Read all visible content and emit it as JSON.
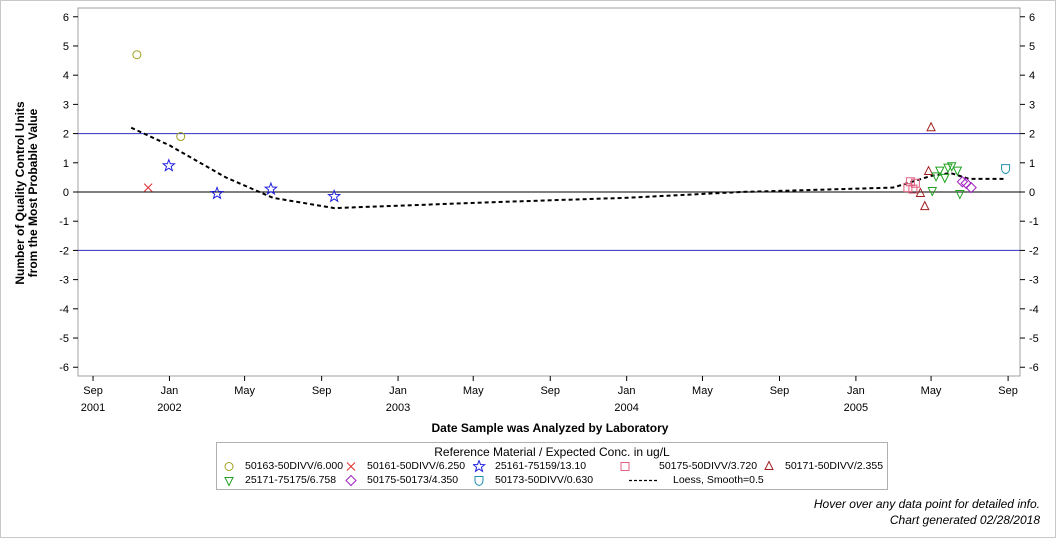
{
  "chart_data": {
    "type": "scatter",
    "title": "",
    "xlabel": "Date Sample was Analyzed by Laboratory",
    "ylabel_lines": [
      "Number of Quality Control Units",
      "from the Most Probable Value"
    ],
    "ylim": [
      -6.3,
      6.3
    ],
    "xlim": [
      "2001-08-08",
      "2005-09-20"
    ],
    "y_ticks": [
      -6,
      -5,
      -4,
      -3,
      -2,
      -1,
      0,
      1,
      2,
      3,
      4,
      5,
      6
    ],
    "x_ticks": [
      {
        "date": "2001-09-01",
        "label": "Sep",
        "year": "2001"
      },
      {
        "date": "2002-01-01",
        "label": "Jan",
        "year": "2002"
      },
      {
        "date": "2002-05-01",
        "label": "May",
        "year": ""
      },
      {
        "date": "2002-09-01",
        "label": "Sep",
        "year": ""
      },
      {
        "date": "2003-01-01",
        "label": "Jan",
        "year": "2003"
      },
      {
        "date": "2003-05-01",
        "label": "May",
        "year": ""
      },
      {
        "date": "2003-09-01",
        "label": "Sep",
        "year": ""
      },
      {
        "date": "2004-01-01",
        "label": "Jan",
        "year": "2004"
      },
      {
        "date": "2004-05-01",
        "label": "May",
        "year": ""
      },
      {
        "date": "2004-09-01",
        "label": "Sep",
        "year": ""
      },
      {
        "date": "2005-01-01",
        "label": "Jan",
        "year": "2005"
      },
      {
        "date": "2005-05-01",
        "label": "May",
        "year": ""
      },
      {
        "date": "2005-09-01",
        "label": "Sep",
        "year": ""
      }
    ],
    "reference_lines": [
      {
        "y": 2,
        "color": "#3030c0"
      },
      {
        "y": 0,
        "color": "#000000"
      },
      {
        "y": -2,
        "color": "#3030c0"
      }
    ],
    "legend_title": "Reference Material / Expected Conc. in ug/L",
    "legend_position": "bottom",
    "grid": false,
    "series": [
      {
        "name": "50163-50DIVV/6.000",
        "marker": "circle",
        "color": "#a0a020",
        "points": [
          [
            "2001-11-10",
            4.7
          ],
          [
            "2002-01-19",
            1.9
          ]
        ]
      },
      {
        "name": "50161-50DIVV/6.250",
        "marker": "x",
        "color": "#e03030",
        "points": [
          [
            "2001-11-28",
            0.15
          ]
        ]
      },
      {
        "name": "25161-75159/13.10",
        "marker": "star",
        "color": "#2020e0",
        "points": [
          [
            "2001-12-31",
            0.9
          ],
          [
            "2002-03-18",
            -0.05
          ],
          [
            "2002-06-12",
            0.1
          ],
          [
            "2002-09-21",
            -0.15
          ]
        ]
      },
      {
        "name": "50175-50DIVV/3.720",
        "marker": "square",
        "color": "#e06080",
        "points": [
          [
            "2005-03-25",
            0.15
          ],
          [
            "2005-03-29",
            0.35
          ],
          [
            "2005-04-02",
            0.1
          ],
          [
            "2005-04-06",
            0.3
          ]
        ]
      },
      {
        "name": "50171-50DIVV/2.355",
        "marker": "triangle",
        "color": "#a02020",
        "points": [
          [
            "2005-04-14",
            -0.05
          ],
          [
            "2005-04-21",
            -0.5
          ],
          [
            "2005-04-27",
            0.7
          ],
          [
            "2005-05-01",
            2.2
          ]
        ]
      },
      {
        "name": "25171-75175/6.758",
        "marker": "triangle-down",
        "color": "#20a020",
        "points": [
          [
            "2005-05-03",
            0.05
          ],
          [
            "2005-05-09",
            0.55
          ],
          [
            "2005-05-15",
            0.75
          ],
          [
            "2005-05-23",
            0.5
          ],
          [
            "2005-05-28",
            0.85
          ],
          [
            "2005-06-03",
            0.9
          ],
          [
            "2005-06-12",
            0.75
          ],
          [
            "2005-06-16",
            -0.05
          ]
        ]
      },
      {
        "name": "50175-50173/4.350",
        "marker": "diamond",
        "color": "#a020c0",
        "points": [
          [
            "2005-06-20",
            0.35
          ],
          [
            "2005-06-26",
            0.3
          ],
          [
            "2005-07-04",
            0.15
          ]
        ]
      },
      {
        "name": "50173-50DIVV/0.630",
        "marker": "shield",
        "color": "#2090b0",
        "points": [
          [
            "2005-08-28",
            0.8
          ]
        ]
      }
    ],
    "loess": {
      "name": "Loess, Smooth=0.5",
      "color": "#000000",
      "points": [
        [
          "2001-11-01",
          2.2
        ],
        [
          "2002-01-01",
          1.6
        ],
        [
          "2002-04-01",
          0.5
        ],
        [
          "2002-06-15",
          -0.2
        ],
        [
          "2002-09-21",
          -0.55
        ],
        [
          "2003-06-01",
          -0.35
        ],
        [
          "2004-01-01",
          -0.2
        ],
        [
          "2004-07-01",
          0.0
        ],
        [
          "2005-03-01",
          0.15
        ],
        [
          "2005-05-01",
          0.55
        ],
        [
          "2005-06-01",
          0.65
        ],
        [
          "2005-07-01",
          0.45
        ],
        [
          "2005-08-28",
          0.45
        ]
      ]
    }
  },
  "legend": {
    "title": "Reference Material / Expected Conc. in ug/L",
    "items": [
      {
        "label": "50163-50DIVV/6.000",
        "marker": "circle",
        "color": "#a0a020"
      },
      {
        "label": "50161-50DIVV/6.250",
        "marker": "x",
        "color": "#e03030"
      },
      {
        "label": "25161-75159/13.10",
        "marker": "star",
        "color": "#2020e0"
      },
      {
        "label": "50175-50DIVV/3.720",
        "marker": "square",
        "color": "#e06080"
      },
      {
        "label": "50171-50DIVV/2.355",
        "marker": "triangle",
        "color": "#a02020"
      },
      {
        "label": "25171-75175/6.758",
        "marker": "triangle-down",
        "color": "#20a020"
      },
      {
        "label": "50175-50173/4.350",
        "marker": "diamond",
        "color": "#a020c0"
      },
      {
        "label": "50173-50DIVV/0.630",
        "marker": "shield",
        "color": "#2090b0"
      },
      {
        "label": "Loess, Smooth=0.5",
        "marker": "dashed-line",
        "color": "#000000"
      }
    ]
  },
  "footer": {
    "line1": "Hover over any data point for detailed info.",
    "line2": "Chart generated 02/28/2018"
  }
}
